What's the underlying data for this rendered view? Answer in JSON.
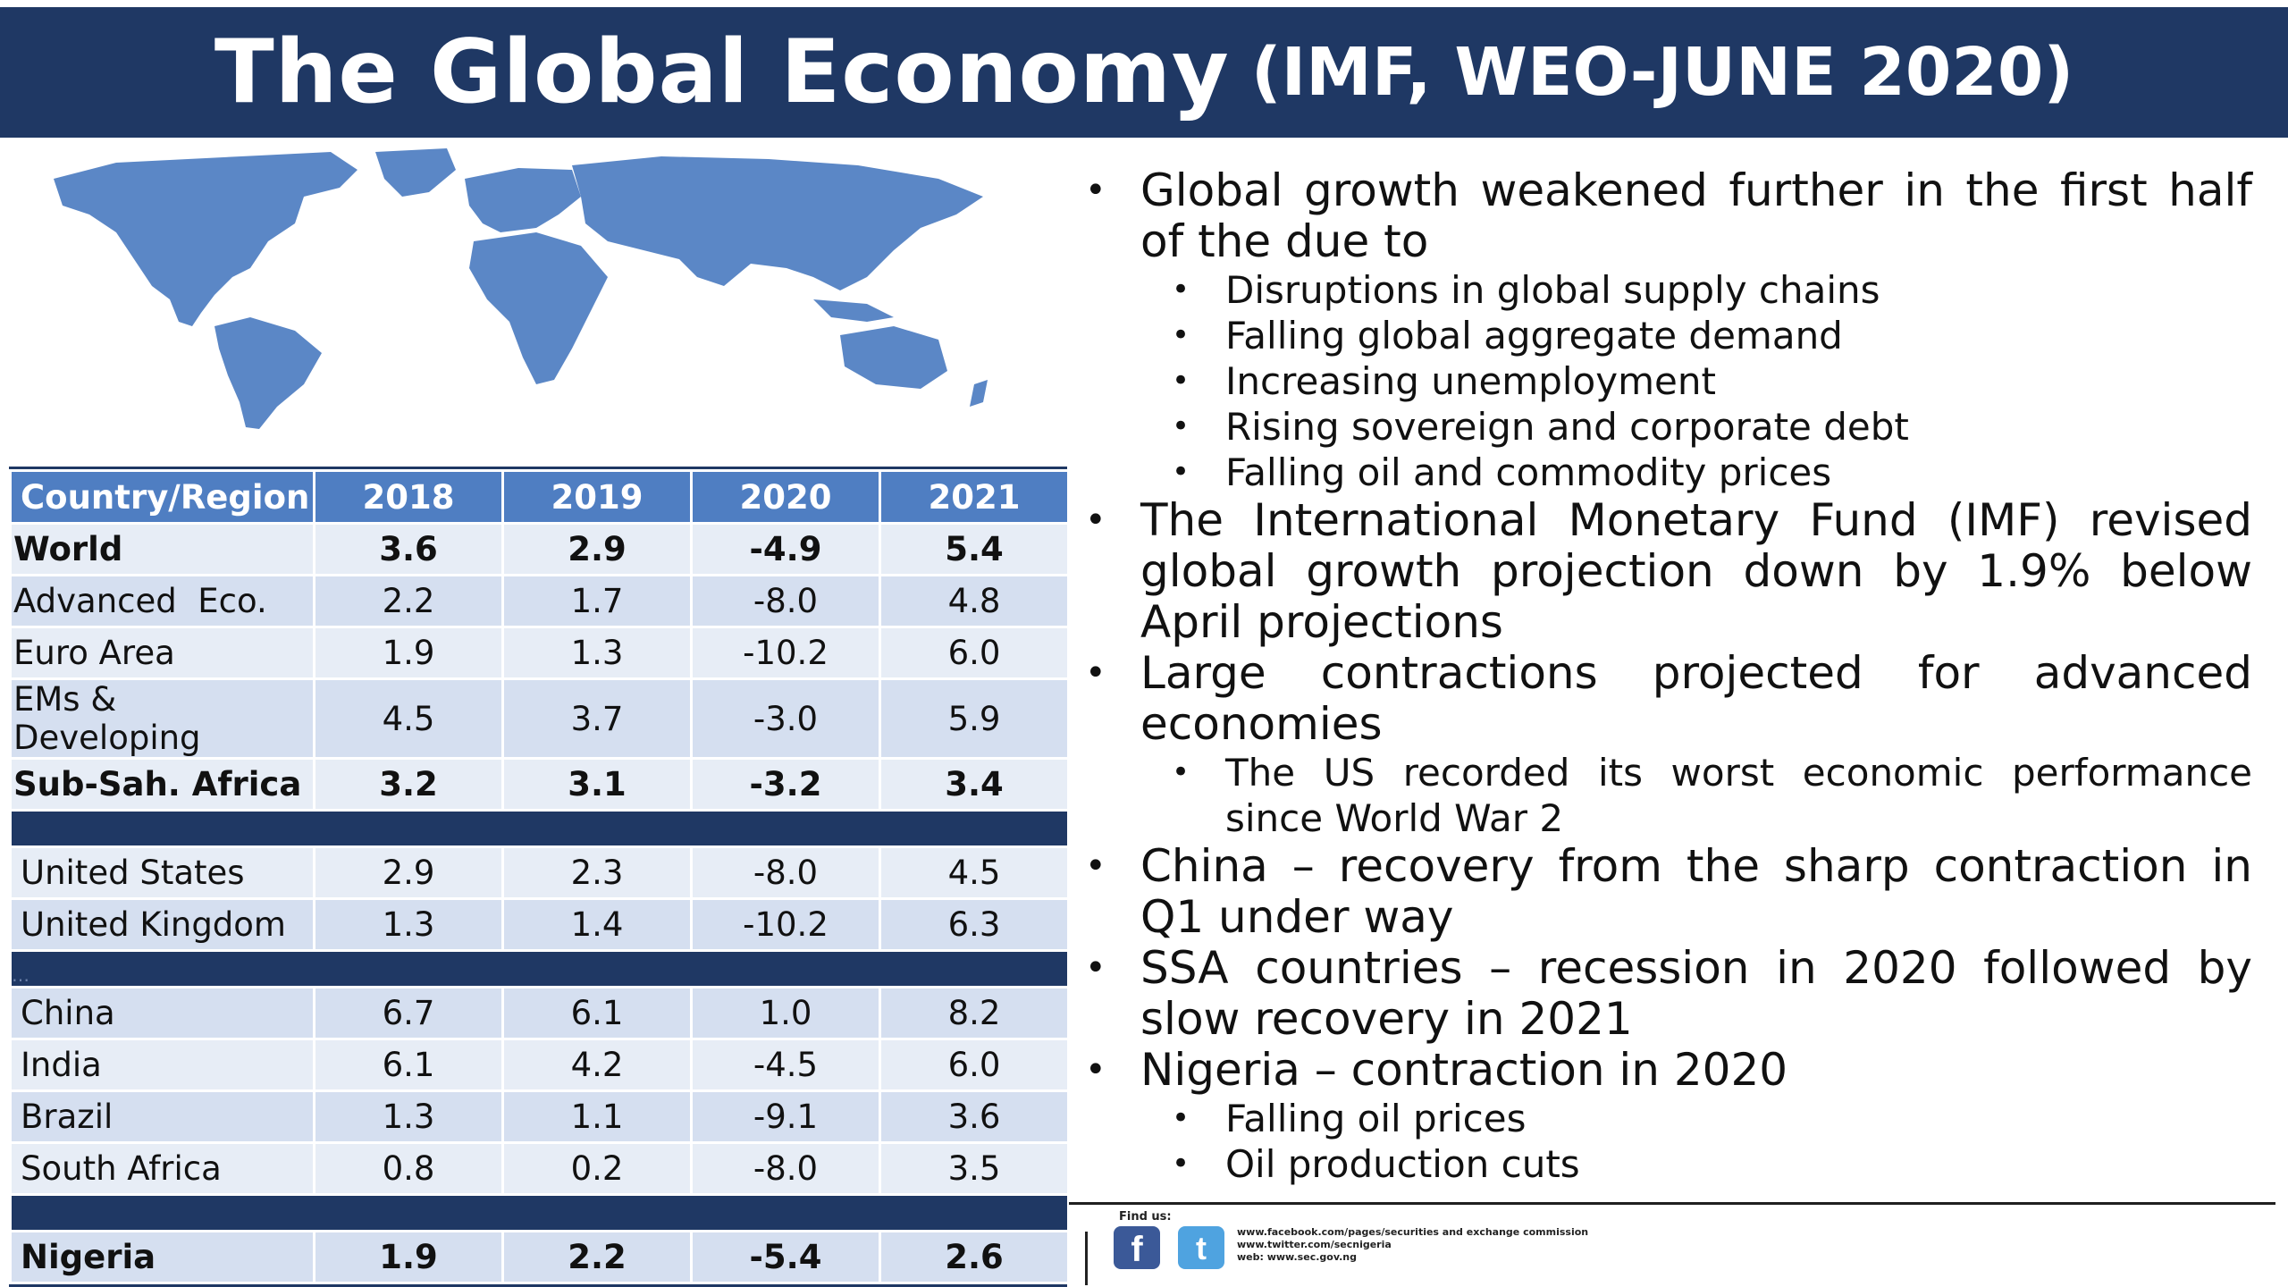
{
  "header": {
    "title": "The Global Economy",
    "subtitle": "(IMF, WEO-JUNE 2020)"
  },
  "table": {
    "columns": [
      "Country/Region",
      "2018",
      "2019",
      "2020",
      "2021"
    ],
    "group1": [
      {
        "name": "World",
        "v": [
          "3.6",
          "2.9",
          "-4.9",
          "5.4"
        ]
      },
      {
        "name": "Advanced  Eco.",
        "v": [
          "2.2",
          "1.7",
          "-8.0",
          "4.8"
        ]
      },
      {
        "name": "Euro Area",
        "v": [
          "1.9",
          "1.3",
          "-10.2",
          "6.0"
        ]
      },
      {
        "name": "EMs & Developing",
        "v": [
          "4.5",
          "3.7",
          "-3.0",
          "5.9"
        ]
      },
      {
        "name": "Sub-Sah. Africa",
        "v": [
          "3.2",
          "3.1",
          "-3.2",
          "3.4"
        ]
      }
    ],
    "group2": [
      {
        "name": "United States",
        "v": [
          "2.9",
          "2.3",
          "-8.0",
          "4.5"
        ]
      },
      {
        "name": "United Kingdom",
        "v": [
          "1.3",
          "1.4",
          "-10.2",
          "6.3"
        ]
      }
    ],
    "sep_dots": "…",
    "group3": [
      {
        "name": "China",
        "v": [
          "6.7",
          "6.1",
          "1.0",
          "8.2"
        ]
      },
      {
        "name": "India",
        "v": [
          "6.1",
          "4.2",
          "-4.5",
          "6.0"
        ]
      },
      {
        "name": "Brazil",
        "v": [
          "1.3",
          "1.1",
          "-9.1",
          "3.6"
        ]
      },
      {
        "name": "South Africa",
        "v": [
          "0.8",
          "0.2",
          "-8.0",
          "3.5"
        ]
      }
    ],
    "nigeria": {
      "name": "Nigeria",
      "v": [
        "1.9",
        "2.2",
        "-5.4",
        "2.6"
      ]
    }
  },
  "bullets": {
    "b1": "Global growth weakened further in the first half of the due to",
    "b1_sub": [
      "Disruptions in global supply chains",
      "Falling global aggregate demand",
      "Increasing unemployment",
      "Rising sovereign and corporate debt",
      "Falling oil and commodity prices"
    ],
    "b2": "The International Monetary Fund (IMF) revised global growth projection down by 1.9% below April projections",
    "b3": "Large contractions projected for advanced economies",
    "b3_sub": [
      "The US recorded its worst economic performance since World War 2"
    ],
    "b4": "China – recovery from the sharp contraction in Q1 under way",
    "b5": "SSA countries – recession in 2020 followed by slow recovery in 2021",
    "b6": "Nigeria – contraction in 2020",
    "b6_sub": [
      "Falling oil prices",
      "Oil production cuts"
    ]
  },
  "footer": {
    "find_us": "Find us:",
    "facebook_glyph": "f",
    "twitter_glyph": "t",
    "link1": "www.facebook.com/pages/securities and exchange commission",
    "link2": "www.twitter.com/secnigeria",
    "link3": "web: www.sec.gov.ng",
    "icons": [
      "facebook-icon",
      "twitter-icon"
    ]
  },
  "colors": {
    "header_bg": "#1f3864",
    "table_header": "#4f7ec2",
    "map": "#5b87c6"
  }
}
